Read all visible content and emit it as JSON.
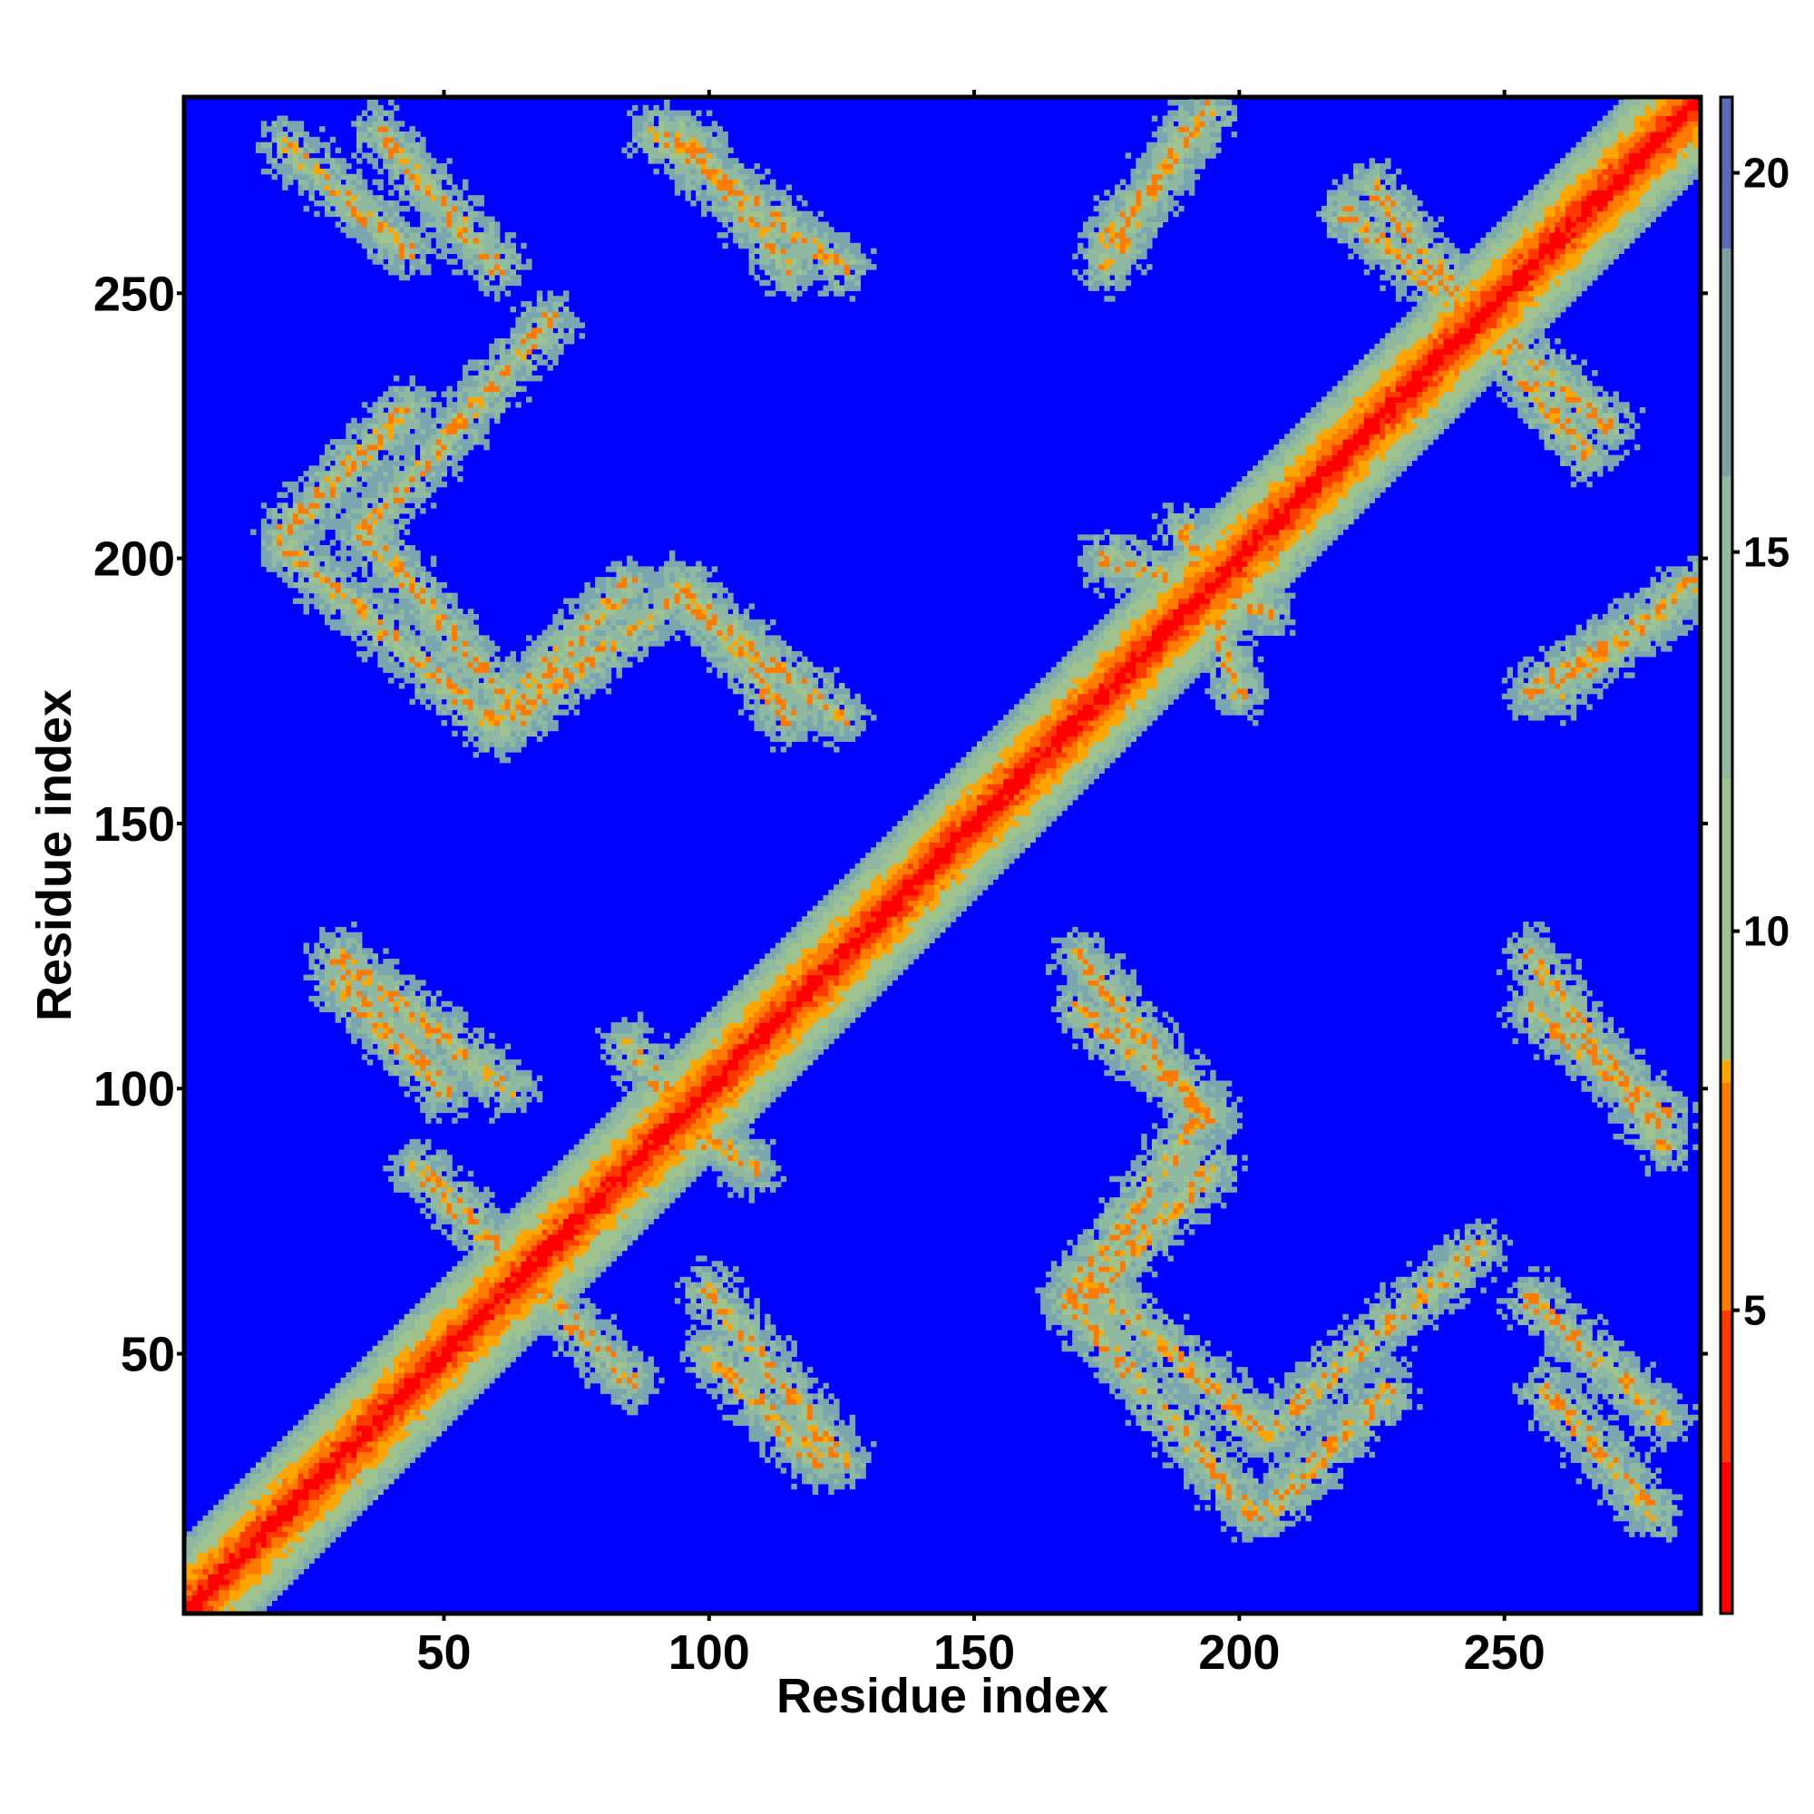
{
  "chart_data": {
    "type": "heatmap",
    "title": "",
    "xlabel": "Residue index",
    "ylabel": "Residue index",
    "xlim": [
      1,
      287
    ],
    "ylim": [
      1,
      287
    ],
    "x_ticks": [
      50,
      100,
      150,
      200,
      250
    ],
    "y_ticks": [
      50,
      100,
      150,
      200,
      250
    ],
    "n_residues": 287,
    "colorbar": {
      "range": [
        1,
        21
      ],
      "ticks": [
        5,
        10,
        15,
        20
      ],
      "colors": [
        "#ff0000",
        "#ff7a00",
        "#ffa500",
        "#8fbf8f",
        "#7f9fa0",
        "#5a6ab4",
        "#0000ff"
      ],
      "position": "right"
    },
    "background_value": 21,
    "features": [
      {
        "kind": "diagonal",
        "start": 1,
        "end": 287
      },
      {
        "kind": "contact_band",
        "from": [
          20,
          278
        ],
        "to": [
          43,
          258
        ]
      },
      {
        "kind": "contact_band",
        "from": [
          20,
          205
        ],
        "to": [
          43,
          228
        ]
      },
      {
        "kind": "contact_band",
        "from": [
          20,
          202
        ],
        "to": [
          60,
          168
        ]
      },
      {
        "kind": "contact_band",
        "from": [
          95,
          193
        ],
        "to": [
          60,
          168
        ]
      },
      {
        "kind": "contact_band",
        "from": [
          95,
          193
        ],
        "to": [
          125,
          170
        ]
      },
      {
        "kind": "contact_band",
        "from": [
          90,
          280
        ],
        "to": [
          125,
          255
        ]
      },
      {
        "kind": "contact_band",
        "from": [
          170,
          115
        ],
        "to": [
          195,
          95
        ]
      },
      {
        "kind": "contact_band",
        "from": [
          170,
          60
        ],
        "to": [
          195,
          85
        ]
      },
      {
        "kind": "contact_band",
        "from": [
          170,
          65
        ],
        "to": [
          205,
          35
        ]
      },
      {
        "kind": "contact_band",
        "from": [
          245,
          70
        ],
        "to": [
          205,
          35
        ]
      },
      {
        "kind": "contact_band",
        "from": [
          255,
          60
        ],
        "to": [
          280,
          38
        ]
      },
      {
        "kind": "contact_band",
        "from": [
          255,
          115
        ],
        "to": [
          280,
          95
        ]
      },
      {
        "kind": "contact_band",
        "from": [
          175,
          200
        ],
        "to": [
          205,
          190
        ]
      },
      {
        "kind": "contact_band",
        "from": [
          190,
          280
        ],
        "to": [
          175,
          255
        ]
      },
      {
        "kind": "contact_band",
        "from": [
          225,
          270
        ],
        "to": [
          265,
          220
        ]
      },
      {
        "kind": "contact_band",
        "from": [
          260,
          175
        ],
        "to": [
          285,
          195
        ]
      },
      {
        "kind": "contact_band",
        "from": [
          30,
          120
        ],
        "to": [
          50,
          100
        ]
      },
      {
        "kind": "contact_band",
        "from": [
          45,
          85
        ],
        "to": [
          70,
          60
        ]
      },
      {
        "kind": "contact_band",
        "from": [
          100,
          62
        ],
        "to": [
          125,
          30
        ]
      },
      {
        "kind": "contact_band",
        "from": [
          85,
          108
        ],
        "to": [
          100,
          90
        ]
      }
    ]
  }
}
